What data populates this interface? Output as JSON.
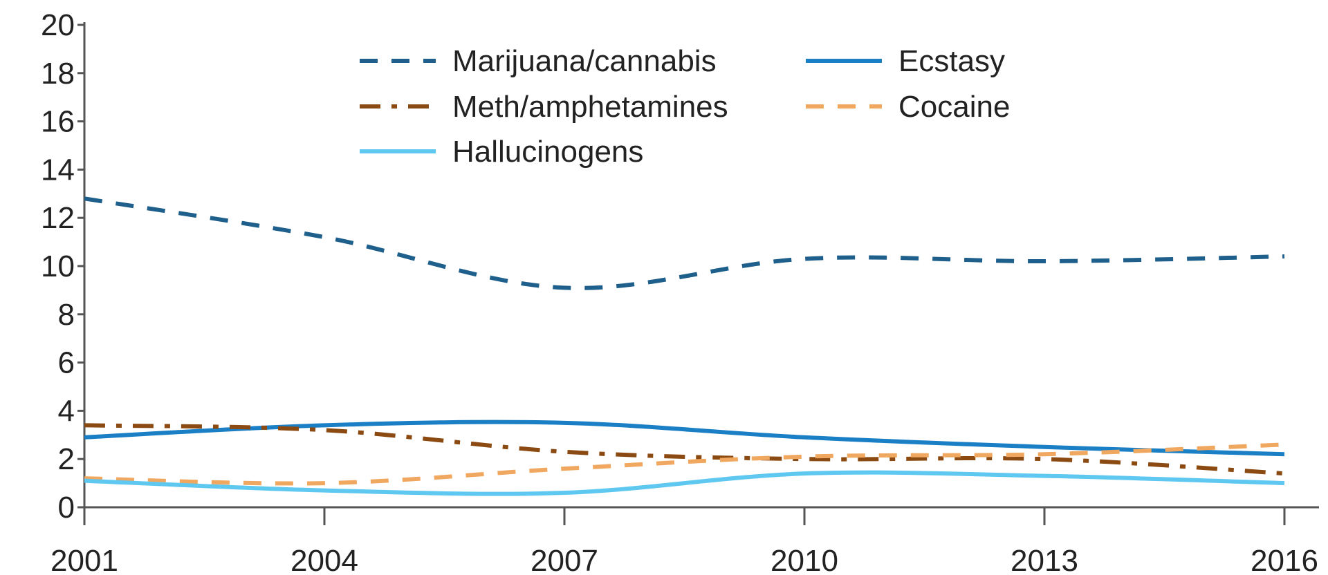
{
  "chart_data": {
    "type": "line",
    "title": "",
    "xlabel": "",
    "ylabel": "",
    "x": [
      "2001",
      "2004",
      "2007",
      "2010",
      "2013",
      "2016"
    ],
    "ylim": [
      0,
      20
    ],
    "yticks": [
      "0",
      "2",
      "4",
      "6",
      "8",
      "10",
      "12",
      "14",
      "16",
      "18",
      "20"
    ],
    "grid": false,
    "legend_position": "top-center",
    "series": [
      {
        "name": "Marijuana/cannabis",
        "color": "#1f5f8b",
        "dash": "dashed",
        "values": [
          12.8,
          11.2,
          9.1,
          10.3,
          10.2,
          10.4
        ]
      },
      {
        "name": "Ecstasy",
        "color": "#1a7fc4",
        "dash": "solid",
        "values": [
          2.9,
          3.4,
          3.5,
          2.9,
          2.5,
          2.2
        ]
      },
      {
        "name": "Meth/amphetamines",
        "color": "#8b4a12",
        "dash": "dashdot",
        "values": [
          3.4,
          3.2,
          2.3,
          2.0,
          2.0,
          1.4
        ]
      },
      {
        "name": "Cocaine",
        "color": "#f0a860",
        "dash": "dashed",
        "values": [
          1.2,
          1.0,
          1.6,
          2.1,
          2.2,
          2.6
        ]
      },
      {
        "name": "Hallucinogens",
        "color": "#5fc8f0",
        "dash": "solid",
        "values": [
          1.1,
          0.7,
          0.6,
          1.4,
          1.3,
          1.0
        ]
      }
    ]
  }
}
